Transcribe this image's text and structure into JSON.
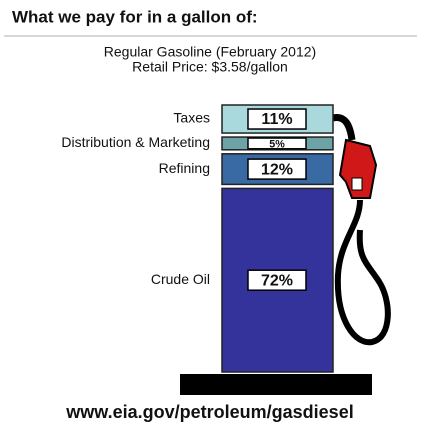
{
  "chart_data": {
    "type": "stacked-column",
    "title": "What we pay for in a gallon of:",
    "subtitle": "Regular Gasoline (February 2012)",
    "subtitle2": "Retail Price: $3.58/gallon",
    "source": "www.eia.gov/petroleum/gasdiesel",
    "categories": [
      "Crude Oil",
      "Refining",
      "Distribution & Marketing",
      "Taxes"
    ],
    "values": [
      72,
      12,
      5,
      11
    ],
    "value_labels": [
      "72%",
      "12%",
      "5%",
      "11%"
    ],
    "colors": [
      "#33339b",
      "#3a6aa3",
      "#6da3a6",
      "#a9d9dc"
    ],
    "ylim": [
      0,
      100
    ]
  }
}
